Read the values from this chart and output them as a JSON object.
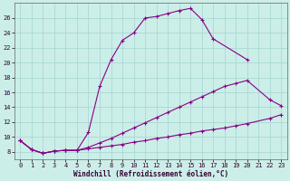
{
  "xlabel": "Windchill (Refroidissement éolien,°C)",
  "bg_color": "#cceee8",
  "grid_color": "#aad8d4",
  "line_color": "#880088",
  "xlim": [
    -0.5,
    23.5
  ],
  "ylim": [
    7.0,
    28.0
  ],
  "xticks": [
    0,
    1,
    2,
    3,
    4,
    5,
    6,
    7,
    8,
    9,
    10,
    11,
    12,
    13,
    14,
    15,
    16,
    17,
    18,
    19,
    20,
    21,
    22,
    23
  ],
  "yticks": [
    8,
    10,
    12,
    14,
    16,
    18,
    20,
    22,
    24,
    26
  ],
  "curve1_x": [
    0,
    1,
    2,
    3,
    4,
    5,
    6,
    7,
    8,
    9,
    10,
    11,
    12,
    13,
    14,
    15,
    16,
    17,
    20
  ],
  "curve1_y": [
    9.5,
    8.3,
    7.8,
    8.1,
    8.2,
    8.2,
    10.6,
    16.8,
    20.4,
    23.0,
    24.0,
    26.0,
    26.2,
    26.6,
    27.0,
    27.3,
    25.8,
    23.2,
    20.4
  ],
  "curve2_x": [
    0,
    1,
    2,
    3,
    4,
    5,
    6,
    7,
    8,
    9,
    10,
    11,
    12,
    13,
    14,
    15,
    16,
    17,
    18,
    19,
    20,
    22,
    23
  ],
  "curve2_y": [
    9.5,
    8.3,
    7.8,
    8.1,
    8.2,
    8.2,
    8.6,
    9.2,
    9.8,
    10.5,
    11.2,
    11.9,
    12.6,
    13.3,
    14.0,
    14.7,
    15.4,
    16.1,
    16.8,
    17.2,
    17.6,
    15.0,
    14.2
  ],
  "curve3_x": [
    0,
    1,
    2,
    3,
    4,
    5,
    6,
    7,
    8,
    9,
    10,
    11,
    12,
    13,
    14,
    15,
    16,
    17,
    18,
    19,
    20,
    22,
    23
  ],
  "curve3_y": [
    9.5,
    8.3,
    7.8,
    8.1,
    8.2,
    8.2,
    8.4,
    8.6,
    8.8,
    9.0,
    9.3,
    9.5,
    9.8,
    10.0,
    10.3,
    10.5,
    10.8,
    11.0,
    11.2,
    11.5,
    11.8,
    12.5,
    13.0
  ]
}
